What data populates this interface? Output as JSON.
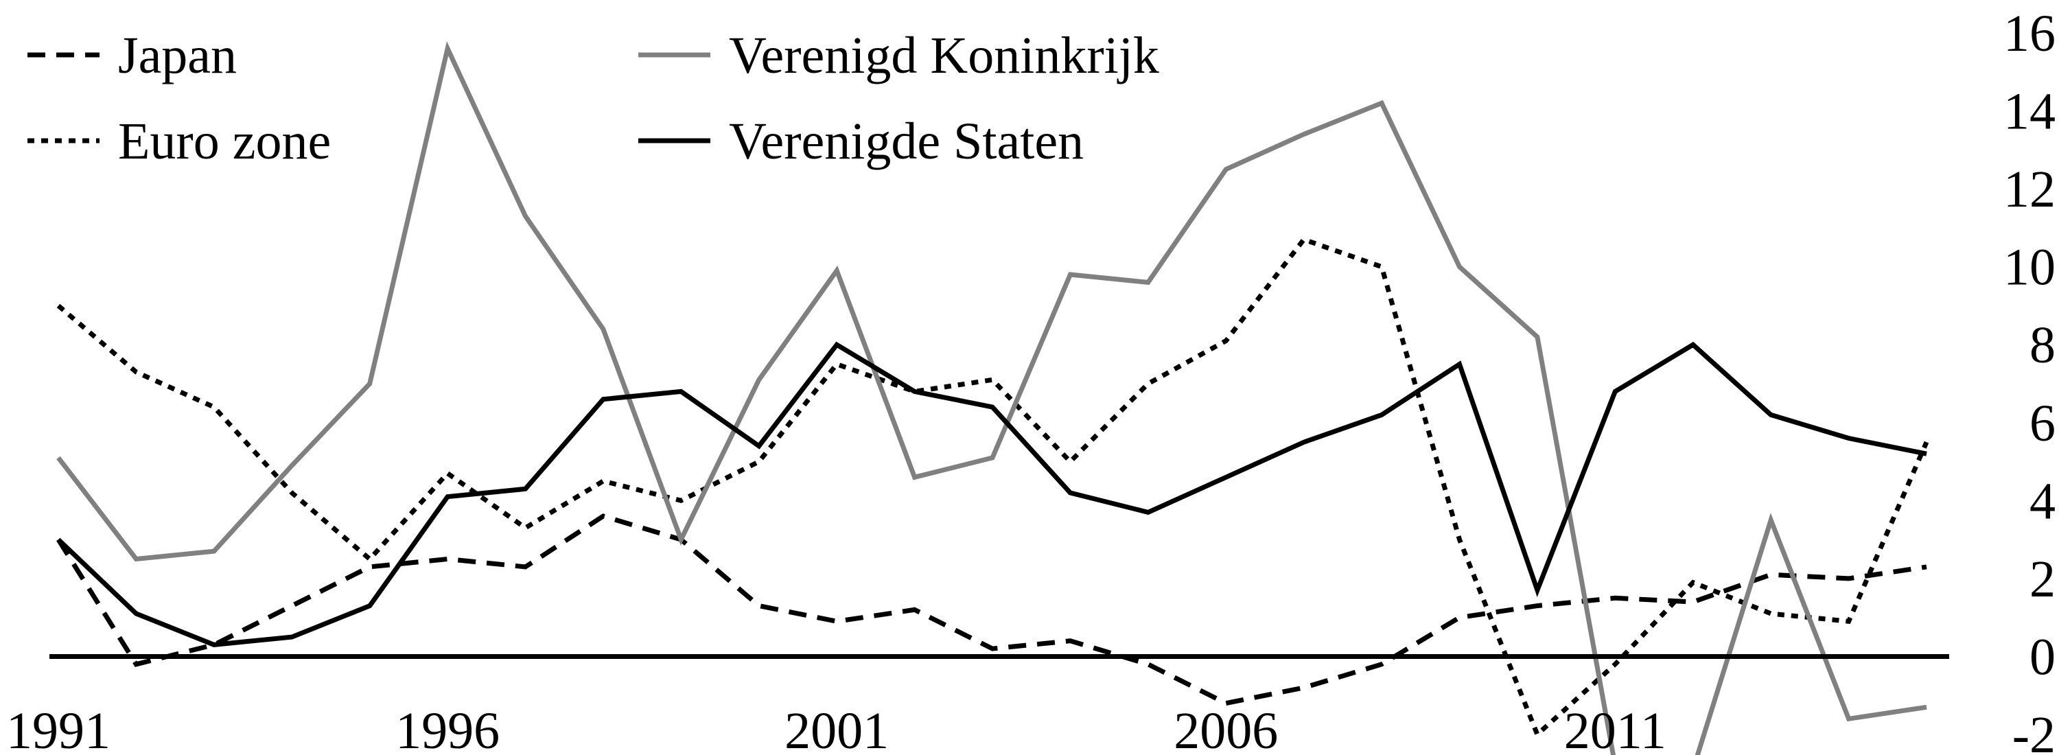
{
  "chart_data": {
    "type": "line",
    "title": "",
    "xlabel": "",
    "ylabel": "",
    "x": [
      1991,
      1992,
      1993,
      1994,
      1995,
      1996,
      1997,
      1998,
      1999,
      2000,
      2001,
      2002,
      2003,
      2004,
      2005,
      2006,
      2007,
      2008,
      2009,
      2010,
      2011,
      2012,
      2013,
      2014,
      2015
    ],
    "xticks": [
      1991,
      1996,
      2001,
      2006,
      2011
    ],
    "xtick_labels": [
      "1991",
      "1996",
      "2001",
      "2006",
      "2011"
    ],
    "ylim": [
      -2,
      16
    ],
    "yticks": [
      -2,
      0,
      2,
      4,
      6,
      8,
      10,
      12,
      14,
      16
    ],
    "ytick_labels": [
      "-2",
      "0",
      "2",
      "4",
      "6",
      "8",
      "10",
      "12",
      "14",
      "16"
    ],
    "y_axis_position": "right",
    "zero_line": true,
    "grid": false,
    "legend_position": "top-left",
    "series": [
      {
        "name": "Japan",
        "style": "dashed",
        "color": "#000000",
        "values": [
          3.0,
          -0.2,
          0.3,
          1.3,
          2.3,
          2.5,
          2.3,
          3.6,
          3.0,
          1.3,
          0.9,
          1.2,
          0.2,
          0.4,
          -0.2,
          -1.2,
          -0.8,
          -0.2,
          1.0,
          1.3,
          1.5,
          1.4,
          2.1,
          2.0,
          2.3
        ]
      },
      {
        "name": "Euro zone",
        "style": "dotted",
        "color": "#000000",
        "values": [
          9.0,
          7.3,
          6.4,
          4.2,
          2.5,
          4.7,
          3.3,
          4.5,
          4.0,
          5.0,
          7.5,
          6.8,
          7.1,
          5.0,
          7.0,
          8.1,
          10.7,
          10.0,
          3.0,
          -2.0,
          -0.2,
          1.9,
          1.1,
          0.9,
          5.5
        ]
      },
      {
        "name": "Verenigd Koninkrijk",
        "style": "solid",
        "color": "#808080",
        "values": [
          5.1,
          2.5,
          2.7,
          4.9,
          7.0,
          15.6,
          11.3,
          8.4,
          3.0,
          7.1,
          9.9,
          4.6,
          5.1,
          9.8,
          9.6,
          12.5,
          13.4,
          14.2,
          10.0,
          8.2,
          -2.8,
          -2.9,
          3.5,
          -1.6,
          -1.3
        ]
      },
      {
        "name": "Verenigde Staten",
        "style": "solid",
        "color": "#000000",
        "values": [
          3.0,
          1.1,
          0.3,
          0.5,
          1.3,
          4.1,
          4.3,
          6.6,
          6.8,
          5.4,
          8.0,
          6.8,
          6.4,
          4.2,
          3.7,
          4.6,
          5.5,
          6.2,
          7.5,
          1.7,
          6.8,
          8.0,
          6.2,
          5.6,
          5.2
        ]
      }
    ]
  }
}
